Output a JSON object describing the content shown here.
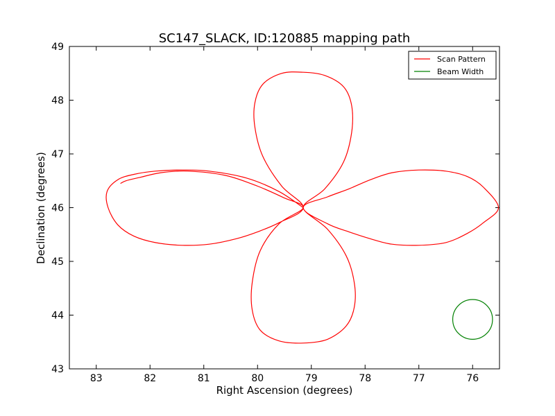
{
  "chart_data": {
    "type": "line",
    "title": "SC147_SLACK, ID:120885 mapping path",
    "xlabel": "Right Ascension (degrees)",
    "ylabel": "Declination (degrees)",
    "xlim": [
      83.5,
      75.5
    ],
    "ylim": [
      43,
      49
    ],
    "x_inverted": true,
    "xticks": [
      83,
      82,
      81,
      80,
      79,
      78,
      77,
      76
    ],
    "yticks": [
      43,
      44,
      45,
      46,
      47,
      48,
      49
    ],
    "grid": false,
    "legend_position": "top-right",
    "series": [
      {
        "name": "Scan Pattern",
        "color": "#ff0000",
        "kind": "four-petal scan path",
        "center": [
          79.15,
          46.0
        ],
        "x": [
          79.15,
          79.6,
          80.2,
          80.9,
          81.4,
          81.9,
          82.3,
          82.6,
          82.8,
          82.78,
          82.6,
          82.3,
          81.9,
          81.4,
          80.9,
          80.4,
          80.0,
          79.6,
          79.15,
          79.55,
          79.9,
          80.05,
          80.05,
          79.9,
          79.55,
          79.15,
          78.75,
          78.4,
          78.25,
          78.25,
          78.4,
          78.75,
          79.15,
          78.7,
          78.3,
          77.9,
          77.5,
          77.0,
          76.5,
          76.1,
          75.8,
          75.52,
          75.8,
          76.1,
          76.5,
          77.0,
          77.5,
          77.9,
          78.3,
          78.7,
          79.15,
          78.7,
          78.35,
          78.2,
          78.2,
          78.35,
          78.7,
          79.15,
          79.6,
          79.95,
          80.1,
          80.1,
          79.95,
          79.6,
          79.15,
          79.5,
          80.0,
          80.6,
          81.3,
          81.8,
          82.2,
          82.45,
          82.55
        ],
        "y": [
          46.0,
          46.3,
          46.55,
          46.68,
          46.7,
          46.68,
          46.62,
          46.52,
          46.3,
          46.0,
          45.68,
          45.47,
          45.35,
          45.3,
          45.32,
          45.42,
          45.55,
          45.72,
          46.0,
          46.4,
          46.95,
          47.5,
          47.95,
          48.3,
          48.5,
          48.52,
          48.46,
          48.25,
          47.9,
          47.4,
          46.85,
          46.35,
          46.0,
          45.7,
          45.55,
          45.42,
          45.32,
          45.3,
          45.35,
          45.52,
          45.72,
          46.0,
          46.38,
          46.58,
          46.68,
          46.7,
          46.65,
          46.52,
          46.35,
          46.2,
          46.0,
          45.6,
          45.1,
          44.6,
          44.15,
          43.8,
          43.55,
          43.48,
          43.52,
          43.72,
          44.1,
          44.6,
          45.2,
          45.7,
          46.0,
          46.18,
          46.4,
          46.6,
          46.68,
          46.65,
          46.56,
          46.5,
          46.45
        ]
      },
      {
        "name": "Beam Width",
        "color": "#008000",
        "kind": "circle",
        "center": [
          76.0,
          43.92
        ],
        "radius": 0.37
      }
    ]
  }
}
